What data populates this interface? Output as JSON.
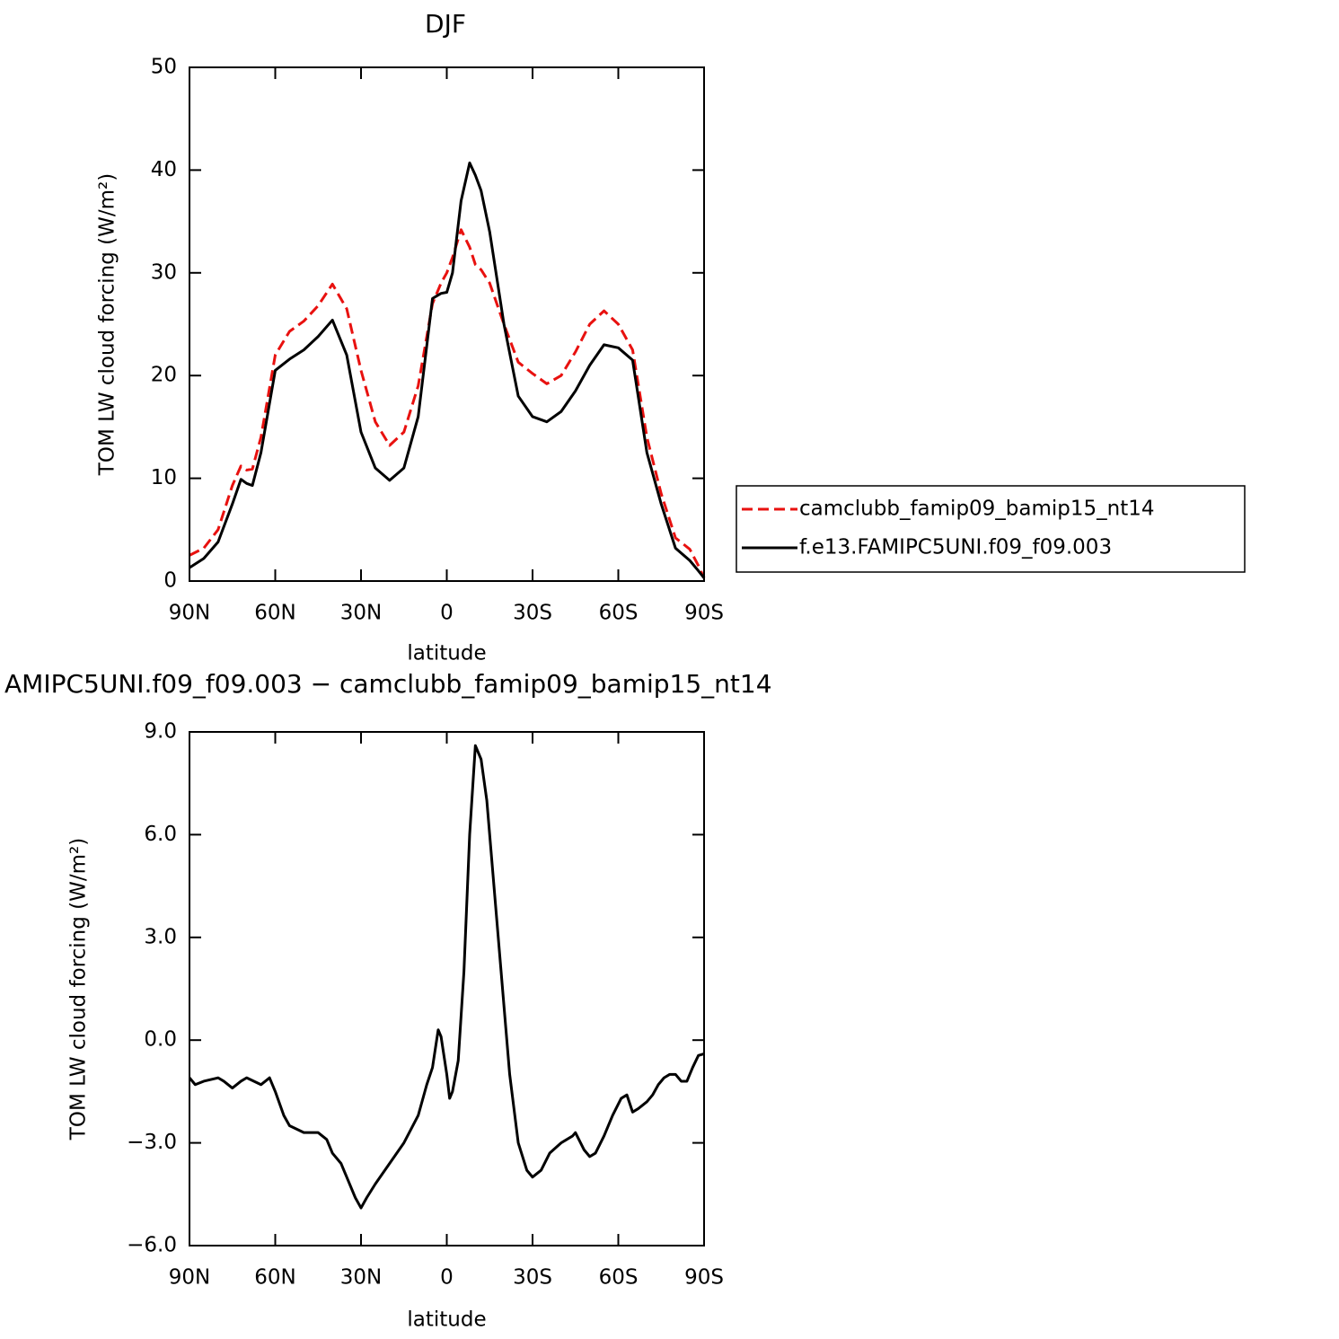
{
  "chart_data": [
    {
      "type": "line",
      "title": "DJF",
      "xlabel": "latitude",
      "ylabel": "TOM LW cloud forcing (W/m²)",
      "x": [
        90,
        85,
        80,
        75,
        72,
        70,
        68,
        65,
        60,
        55,
        50,
        45,
        40,
        35,
        30,
        25,
        20,
        15,
        10,
        5,
        2,
        0,
        -2,
        -5,
        -8,
        -10,
        -12,
        -15,
        -20,
        -25,
        -30,
        -35,
        -40,
        -45,
        -50,
        -55,
        -60,
        -65,
        -70,
        -75,
        -80,
        -85,
        -88,
        -90
      ],
      "series": [
        {
          "name": "camclubb_famip09_bamip15_nt14",
          "color": "#e8110f",
          "linestyle": "dashed",
          "values": [
            2.5,
            3.2,
            5.0,
            9.3,
            11.2,
            10.8,
            10.9,
            14,
            22,
            24.3,
            25.3,
            26.8,
            28.9,
            26.5,
            20.5,
            15.5,
            13.2,
            14.5,
            19,
            27,
            29,
            30,
            31.5,
            34.2,
            32.5,
            30.8,
            30.3,
            29,
            25,
            21.3,
            20.2,
            19.2,
            20,
            22.3,
            25,
            26.3,
            25,
            22.5,
            14,
            8.5,
            4.2,
            3.1,
            1.5,
            0.3
          ]
        },
        {
          "name": "f.e13.FAMIPC5UNI.f09_f09.003",
          "color": "#000000",
          "linestyle": "solid",
          "values": [
            1.3,
            2.2,
            3.8,
            7.5,
            9.9,
            9.5,
            9.3,
            12.5,
            20.5,
            21.6,
            22.5,
            23.8,
            25.4,
            22,
            14.5,
            11,
            9.8,
            11,
            16,
            27.5,
            28,
            28.1,
            30,
            37,
            40.7,
            39.5,
            38,
            34,
            25,
            18,
            16,
            15.5,
            16.5,
            18.5,
            21,
            23,
            22.7,
            21.5,
            12.5,
            7.5,
            3.2,
            2.0,
            1.0,
            0.3
          ]
        }
      ],
      "xlim": [
        90,
        -90
      ],
      "xticks": [
        {
          "value": 90,
          "label": "90N"
        },
        {
          "value": 60,
          "label": "60N"
        },
        {
          "value": 30,
          "label": "30N"
        },
        0,
        {
          "value": -30,
          "label": "30S"
        },
        {
          "value": -60,
          "label": "60S"
        },
        {
          "value": -90,
          "label": "90S"
        }
      ],
      "ylim": [
        0,
        50
      ],
      "yticks": [
        0,
        10,
        20,
        30,
        40,
        50
      ],
      "legend": "right"
    },
    {
      "type": "line",
      "title": "AMIPC5UNI.f09_f09.003 − camclubb_famip09_bamip15_nt14",
      "xlabel": "latitude",
      "ylabel": "TOM LW cloud forcing (W/m²)",
      "x": [
        90,
        88,
        85,
        80,
        78,
        75,
        72,
        70,
        65,
        62,
        60,
        57,
        55,
        50,
        45,
        42,
        40,
        37,
        35,
        32,
        30,
        28,
        25,
        20,
        15,
        10,
        7,
        5,
        3,
        2,
        0,
        -1,
        -2,
        -4,
        -6,
        -8,
        -10,
        -12,
        -14,
        -16,
        -19,
        -22,
        -25,
        -28,
        -30,
        -33,
        -36,
        -40,
        -44,
        -45,
        -48,
        -50,
        -52,
        -55,
        -58,
        -61,
        -63,
        -65,
        -67,
        -70,
        -72,
        -74,
        -76,
        -78,
        -80,
        -82,
        -84,
        -86,
        -88,
        -90
      ],
      "values": [
        -1.1,
        -1.3,
        -1.2,
        -1.1,
        -1.2,
        -1.4,
        -1.2,
        -1.1,
        -1.3,
        -1.1,
        -1.5,
        -2.2,
        -2.5,
        -2.7,
        -2.7,
        -2.9,
        -3.3,
        -3.6,
        -4.0,
        -4.6,
        -4.9,
        -4.6,
        -4.2,
        -3.6,
        -3.0,
        -2.2,
        -1.3,
        -0.8,
        0.3,
        0.1,
        -1.0,
        -1.7,
        -1.5,
        -0.6,
        2.0,
        6.0,
        8.6,
        8.2,
        7,
        5,
        2,
        -1,
        -3,
        -3.8,
        -4.0,
        -3.8,
        -3.3,
        -3.0,
        -2.8,
        -2.7,
        -3.2,
        -3.4,
        -3.3,
        -2.8,
        -2.2,
        -1.7,
        -1.6,
        -2.1,
        -2.0,
        -1.8,
        -1.6,
        -1.3,
        -1.1,
        -1.0,
        -1.0,
        -1.2,
        -1.2,
        -0.8,
        -0.45,
        -0.4
      ],
      "color": "#000000",
      "xlim": [
        90,
        -90
      ],
      "xticks": [
        {
          "value": 90,
          "label": "90N"
        },
        {
          "value": 60,
          "label": "60N"
        },
        {
          "value": 30,
          "label": "30N"
        },
        0,
        {
          "value": -30,
          "label": "30S"
        },
        {
          "value": -60,
          "label": "60S"
        },
        {
          "value": -90,
          "label": "90S"
        }
      ],
      "ylim": [
        -6,
        9
      ],
      "yticks": [
        {
          "value": -6,
          "label": "−6.0"
        },
        {
          "value": -3,
          "label": "−3.0"
        },
        {
          "value": 0,
          "label": "0.0"
        },
        {
          "value": 3,
          "label": "3.0"
        },
        {
          "value": 6,
          "label": "6.0"
        },
        {
          "value": 9,
          "label": "9.0"
        }
      ]
    }
  ]
}
